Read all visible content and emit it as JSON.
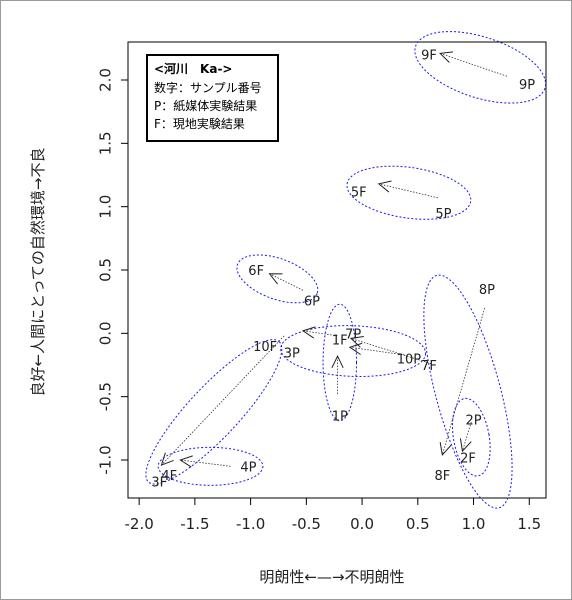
{
  "chart_data": {
    "type": "scatter",
    "xlabel": "明朗性←—→不明朗性",
    "ylabel": "良好←人間にとっての自然環境→不良",
    "xlim": [
      -2.1,
      1.65
    ],
    "ylim": [
      -1.3,
      2.3
    ],
    "x_ticks": [
      -2.0,
      -1.5,
      -1.0,
      -0.5,
      0.0,
      0.5,
      1.0,
      1.5
    ],
    "y_ticks": [
      -1.0,
      -0.5,
      0.0,
      0.5,
      1.0,
      1.5,
      2.0
    ],
    "x_tick_labels": [
      "-2.0",
      "-1.5",
      "-1.0",
      "-0.5",
      "0.0",
      "0.5",
      "1.0",
      "1.5"
    ],
    "y_tick_labels": [
      "-1.0",
      "-0.5",
      "0.0",
      "0.5",
      "1.0",
      "1.5",
      "2.0"
    ],
    "legend": {
      "title": "<河川　Ka->",
      "lines": [
        "数字：サンプル番号",
        "P：紙媒体実験結果",
        "F：現地実験結果"
      ],
      "placement": "top-left"
    },
    "points": [
      {
        "label": "1P",
        "x": -0.2,
        "y": -0.65
      },
      {
        "label": "1F",
        "x": -0.2,
        "y": -0.05
      },
      {
        "label": "2P",
        "x": 1.0,
        "y": -0.68
      },
      {
        "label": "2F",
        "x": 0.95,
        "y": -0.98
      },
      {
        "label": "3P",
        "x": -0.63,
        "y": -0.15
      },
      {
        "label": "3F",
        "x": -1.82,
        "y": -1.17
      },
      {
        "label": "4P",
        "x": -1.02,
        "y": -1.05
      },
      {
        "label": "4F",
        "x": -1.73,
        "y": -1.12
      },
      {
        "label": "6P",
        "x": -0.45,
        "y": 0.26
      },
      {
        "label": "6F",
        "x": -0.95,
        "y": 0.5
      },
      {
        "label": "7P",
        "x": -0.08,
        "y": 0.0
      },
      {
        "label": "7F",
        "x": 0.6,
        "y": -0.25
      },
      {
        "label": "8P",
        "x": 1.12,
        "y": 0.35
      },
      {
        "label": "8F",
        "x": 0.72,
        "y": -1.12
      },
      {
        "label": "9P",
        "x": 1.48,
        "y": 1.97
      },
      {
        "label": "9F",
        "x": 0.6,
        "y": 2.2
      },
      {
        "label": "10P",
        "x": 0.42,
        "y": -0.2
      },
      {
        "label": "10F",
        "x": -0.87,
        "y": -0.1
      },
      {
        "label": "5P",
        "x": 0.73,
        "y": 0.95
      },
      {
        "label": "5F",
        "x": -0.03,
        "y": 1.12
      }
    ],
    "arrows": [
      {
        "from": [
          1.3,
          2.03
        ],
        "to": [
          0.7,
          2.21
        ]
      },
      {
        "from": [
          0.68,
          1.07
        ],
        "to": [
          0.15,
          1.18
        ]
      },
      {
        "from": [
          -0.53,
          0.34
        ],
        "to": [
          -0.83,
          0.47
        ]
      },
      {
        "from": [
          -0.22,
          -0.48
        ],
        "to": [
          -0.22,
          -0.18
        ]
      },
      {
        "from": [
          0.38,
          -0.17
        ],
        "to": [
          -0.11,
          -0.11
        ]
      },
      {
        "from": [
          0.62,
          -0.24
        ],
        "to": [
          -0.1,
          -0.04
        ]
      },
      {
        "from": [
          -0.22,
          -0.02
        ],
        "to": [
          -0.53,
          0.02
        ]
      },
      {
        "from": [
          -0.7,
          -0.02
        ],
        "to": [
          -1.8,
          -1.04
        ]
      },
      {
        "from": [
          -1.18,
          -1.05
        ],
        "to": [
          -1.63,
          -1.0
        ]
      },
      {
        "from": [
          1.1,
          0.2
        ],
        "to": [
          0.72,
          -0.96
        ]
      },
      {
        "from": [
          0.98,
          -0.7
        ],
        "to": [
          0.9,
          -0.93
        ]
      }
    ],
    "ellipses": [
      {
        "cx": 1.06,
        "cy": 2.1,
        "rx": 0.61,
        "ry": 0.24,
        "angle": -18
      },
      {
        "cx": 0.42,
        "cy": 1.11,
        "rx": 0.56,
        "ry": 0.2,
        "angle": -8
      },
      {
        "cx": -0.76,
        "cy": 0.43,
        "rx": 0.38,
        "ry": 0.16,
        "angle": -20
      },
      {
        "cx": -0.2,
        "cy": -0.23,
        "rx": 0.15,
        "ry": 0.46,
        "angle": 0
      },
      {
        "cx": -0.08,
        "cy": -0.14,
        "rx": 0.65,
        "ry": 0.2,
        "angle": -2
      },
      {
        "cx": -1.33,
        "cy": -0.62,
        "rx": 0.86,
        "ry": 0.2,
        "angle": 47
      },
      {
        "cx": -1.36,
        "cy": -1.05,
        "rx": 0.47,
        "ry": 0.15,
        "angle": 0
      },
      {
        "cx": 0.95,
        "cy": -0.46,
        "rx": 0.29,
        "ry": 0.95,
        "angle": 15
      },
      {
        "cx": 0.98,
        "cy": -0.82,
        "rx": 0.16,
        "ry": 0.31,
        "angle": 10
      }
    ]
  }
}
